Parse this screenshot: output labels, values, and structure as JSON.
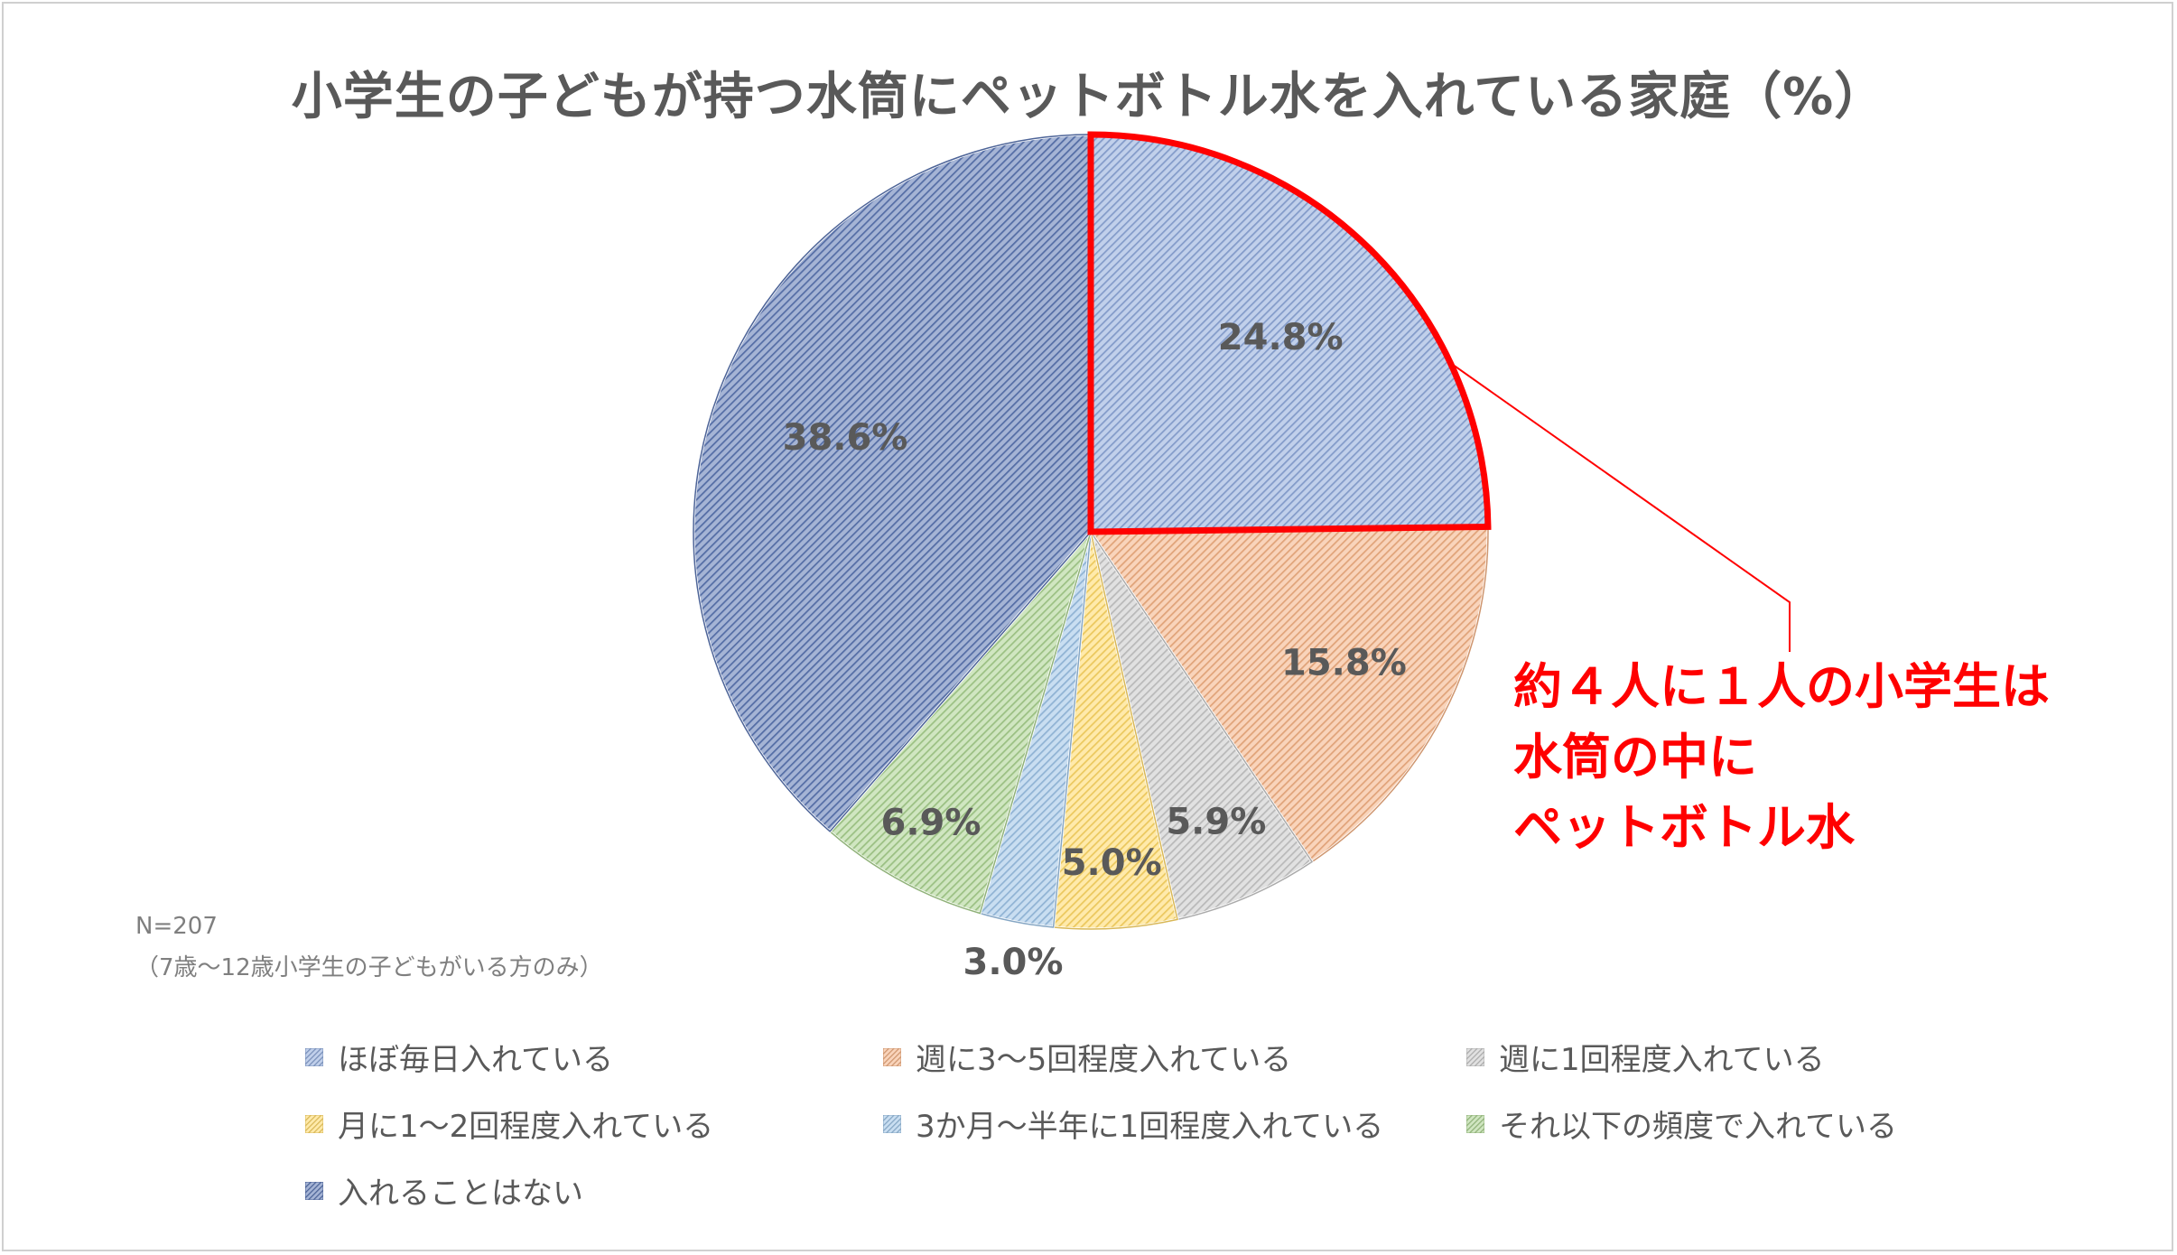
{
  "chart_data": {
    "type": "pie",
    "title": "小学生の子どもが持つ水筒にペットボトル水を入れている家庭（%）",
    "categories": [
      "ほぼ毎日入れている",
      "週に3～5回程度入れている",
      "週に1回程度入れている",
      "月に1～2回程度入れている",
      "3か月～半年に1回程度入れている",
      "それ以下の頻度で入れている",
      "入れることはない"
    ],
    "values": [
      24.8,
      15.8,
      5.9,
      5.0,
      3.0,
      6.9,
      38.6
    ],
    "labels": [
      "24.8%",
      "15.8%",
      "5.9%",
      "5.0%",
      "3.0%",
      "6.9%",
      "38.6%"
    ],
    "colors": [
      "#8ea9db",
      "#f4b183",
      "#c9c9c9",
      "#ffd966",
      "#9dc3e6",
      "#a9d18e",
      "#5b76b3"
    ],
    "highlight": {
      "category": "ほぼ毎日入れている",
      "color": "#ff0000"
    },
    "legend_position": "bottom"
  },
  "callout": {
    "lines": [
      "約４人に１人の小学生は",
      "水筒の中に",
      "ペットボトル水"
    ],
    "color": "#ff0000"
  },
  "note": {
    "sample": "N=207",
    "scope": "（7歳～12歳小学生の子どもがいる方のみ）"
  }
}
